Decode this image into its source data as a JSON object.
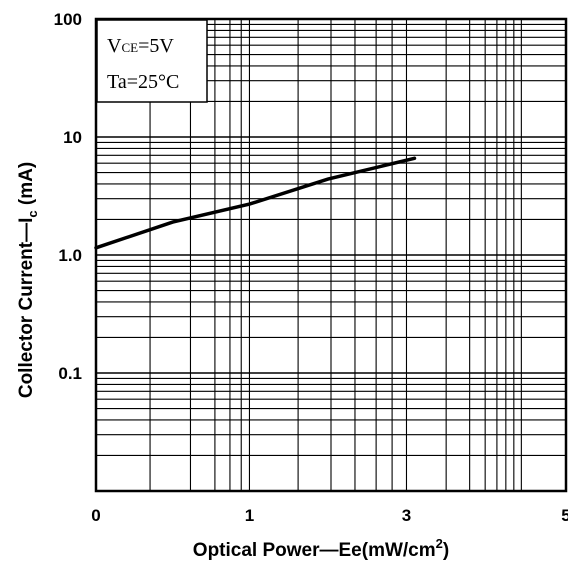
{
  "chart_data": {
    "type": "line",
    "xlabel": "Optical Power—Ee(mW/cm",
    "xlabel_sup": "2",
    "xlabel_end": ")",
    "ylabel": "Collector Current—I",
    "ylabel_sub": "c",
    "ylabel_end": " (mA)",
    "x_scale": "log-like",
    "y_scale": "log",
    "xlim": [
      0,
      5
    ],
    "ylim": [
      0.01,
      100
    ],
    "grid": true,
    "x_ticks": [
      {
        "value": 0,
        "label": "0"
      },
      {
        "value": 1,
        "label": "1"
      },
      {
        "value": 3,
        "label": "3"
      },
      {
        "value": 5,
        "label": "5"
      }
    ],
    "y_ticks": [
      {
        "value": 100,
        "label": "100"
      },
      {
        "value": 10,
        "label": "10"
      },
      {
        "value": 1,
        "label": "1.0"
      },
      {
        "value": 0.1,
        "label": "0.1"
      }
    ],
    "annotation": {
      "vce_main": "V",
      "vce_sub": "CE",
      "vce_val": "=5V",
      "ta": "Ta=25°C"
    },
    "series": [
      {
        "x": [
          0,
          0.5,
          1.0,
          2.0,
          3.1
        ],
        "y": [
          1.15,
          1.9,
          2.7,
          4.4,
          6.6
        ]
      }
    ]
  }
}
